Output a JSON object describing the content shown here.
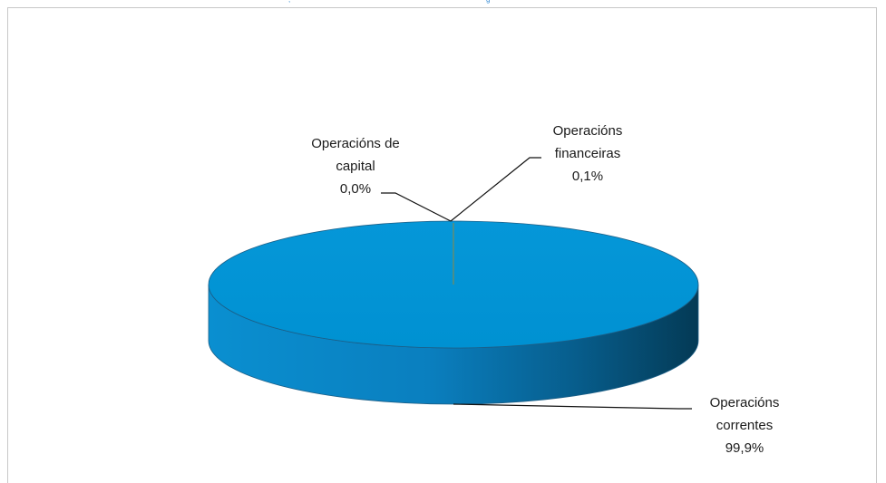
{
  "chart_data": {
    "type": "pie",
    "title": "",
    "slices": [
      {
        "name": "Operacións correntes",
        "label_lines": [
          "Operacións",
          "correntes"
        ],
        "value_label": "99,9%",
        "value": 99.9
      },
      {
        "name": "Operacións financeiras",
        "label_lines": [
          "Operacións",
          "financeiras"
        ],
        "value_label": "0,1%",
        "value": 0.1
      },
      {
        "name": "Operacións de capital",
        "label_lines": [
          "Operacións de",
          "capital"
        ],
        "value_label": "0,0%",
        "value": 0.0
      }
    ],
    "colors": {
      "top": "#0096d6",
      "side_light": "#0a8fd0",
      "side_dark": "#043a55",
      "edge": "#1c5e86"
    },
    "three_d": true
  }
}
